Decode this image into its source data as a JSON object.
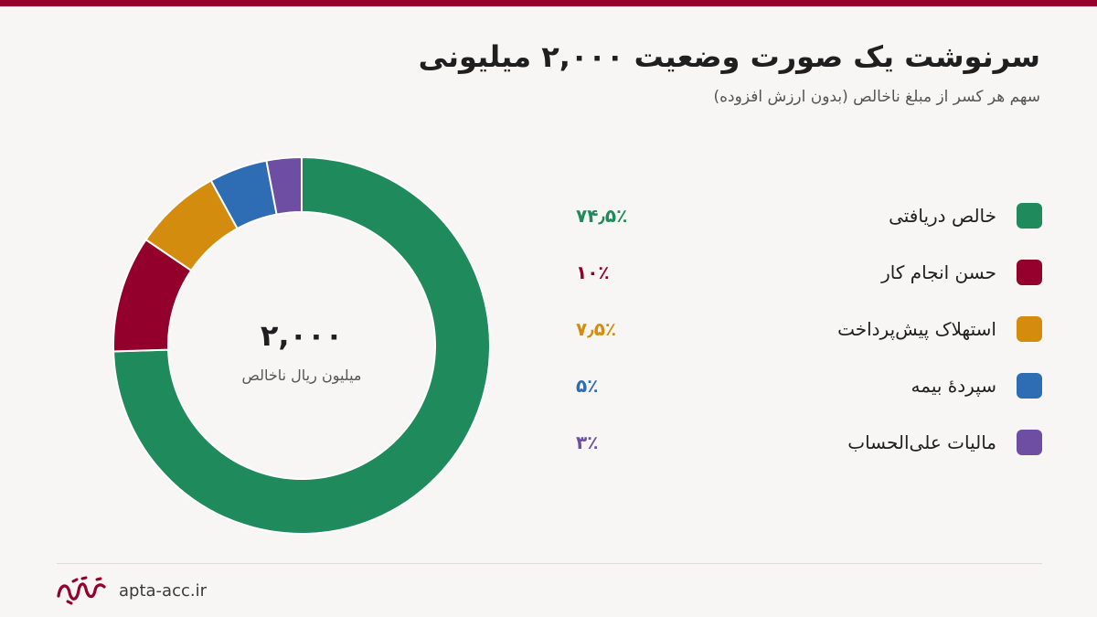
{
  "header": {
    "title": "سرنوشت یک صورت وضعیت ۲,۰۰۰ میلیونی",
    "subtitle": "سهم هر کسر از مبلغ ناخالص (بدون ارزش افزوده)"
  },
  "center": {
    "value": "۲,۰۰۰",
    "label": "میلیون ریال ناخالص"
  },
  "chart_data": {
    "type": "pie",
    "style": "donut",
    "categories": [
      "خالص دریافتی",
      "حسن انجام کار",
      "استهلاک پیش‌پرداخت",
      "سپردهٔ بیمه",
      "مالیات علی‌الحساب"
    ],
    "values": [
      74.5,
      10,
      7.5,
      5,
      3
    ],
    "value_labels": [
      "۷۴٫۵٪",
      "۱۰٪",
      "۷٫۵٪",
      "۵٪",
      "۳٪"
    ],
    "colors": [
      "#1f8a5b",
      "#93002b",
      "#d48c0e",
      "#2e6db4",
      "#6e4ea2"
    ],
    "legend_placement": "right"
  },
  "footer": {
    "site": "apta-acc.ir"
  },
  "colors": {
    "accent": "#93002b",
    "background": "#f8f6f4"
  },
  "icons": {
    "logo": "apta-logo-icon"
  }
}
